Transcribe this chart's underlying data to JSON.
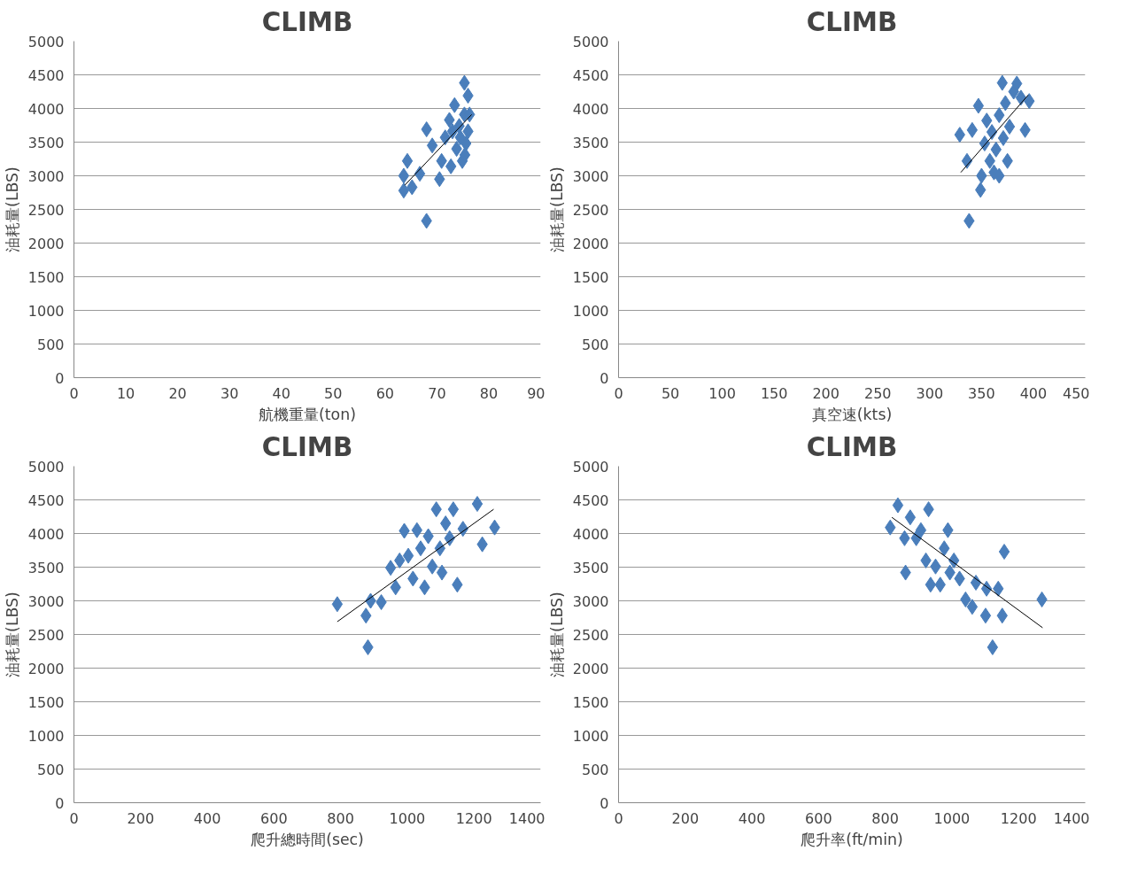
{
  "chart_data": [
    {
      "type": "scatter",
      "title": "CLIMB",
      "xlabel": "航機重量(ton)",
      "ylabel": "油耗量(LBS)",
      "xlim": [
        0,
        90
      ],
      "xticks": [
        0,
        10,
        20,
        30,
        40,
        50,
        60,
        70,
        80,
        90
      ],
      "ylim": [
        0,
        5000
      ],
      "yticks": [
        0,
        500,
        1000,
        1500,
        2000,
        2500,
        3000,
        3500,
        4000,
        4500,
        5000
      ],
      "grid": "y",
      "series": [
        {
          "marker": "diamond",
          "color": "#4a7ebb",
          "x": [
            63.6,
            63.6,
            64.3,
            65.2,
            66.7,
            68,
            68,
            69.1,
            70.5,
            71.6,
            72.4,
            72.7,
            73.4,
            73.8,
            74.3,
            74.9,
            75.3,
            75.3,
            75.6,
            76,
            76,
            76.3,
            75.4,
            74.5,
            73,
            70.9
          ],
          "values": [
            3000,
            2780,
            3220,
            2830,
            3030,
            3690,
            2330,
            3450,
            2950,
            3570,
            3830,
            3140,
            4050,
            3400,
            3740,
            3220,
            4380,
            3910,
            3480,
            4190,
            3660,
            3910,
            3310,
            3570,
            3660,
            3220
          ]
        },
        {
          "type": "line",
          "color": "#000000",
          "x": [
            63.8,
            76.7
          ],
          "values": [
            2860,
            3910
          ]
        }
      ]
    },
    {
      "type": "scatter",
      "title": "CLIMB",
      "xlabel": "真空速(kts)",
      "ylabel": "油耗量(LBS)",
      "xlim": [
        0,
        450
      ],
      "xticks": [
        0,
        50,
        100,
        150,
        200,
        250,
        300,
        350,
        400,
        450
      ],
      "ylim": [
        0,
        5000
      ],
      "yticks": [
        0,
        500,
        1000,
        1500,
        2000,
        2500,
        3000,
        3500,
        4000,
        4500,
        5000
      ],
      "grid": "y",
      "series": [
        {
          "marker": "diamond",
          "color": "#4a7ebb",
          "x": [
            329,
            336,
            338,
            341,
            347,
            349,
            350,
            353,
            355,
            358,
            360,
            362,
            364,
            367,
            367,
            370,
            371,
            373,
            375,
            377,
            381,
            384,
            388,
            392,
            396
          ],
          "values": [
            3610,
            3220,
            2330,
            3680,
            4040,
            2790,
            3000,
            3480,
            3820,
            3220,
            3650,
            3050,
            3390,
            3900,
            3000,
            4380,
            3560,
            4080,
            3220,
            3730,
            4250,
            4370,
            4160,
            3680,
            4110
          ]
        },
        {
          "type": "line",
          "color": "#000000",
          "x": [
            330,
            395
          ],
          "values": [
            3050,
            4200
          ]
        }
      ]
    },
    {
      "type": "scatter",
      "title": "CLIMB",
      "xlabel": "爬升總時間(sec)",
      "ylabel": "油耗量(LBS)",
      "xlim": [
        0,
        1400
      ],
      "xticks": [
        0,
        200,
        400,
        600,
        800,
        1000,
        1200,
        1400
      ],
      "ylim": [
        0,
        5000
      ],
      "yticks": [
        0,
        500,
        1000,
        1500,
        2000,
        2500,
        3000,
        3500,
        4000,
        4500,
        5000
      ],
      "grid": "y",
      "series": [
        {
          "marker": "diamond",
          "color": "#4a7ebb",
          "x": [
            790,
            876,
            882,
            890,
            922,
            950,
            965,
            977,
            991,
            1003,
            1017,
            1029,
            1040,
            1052,
            1063,
            1075,
            1087,
            1098,
            1104,
            1115,
            1127,
            1138,
            1150,
            1167,
            1210,
            1225,
            1262
          ],
          "values": [
            2950,
            2780,
            2310,
            3000,
            2980,
            3490,
            3200,
            3600,
            4040,
            3670,
            3330,
            4050,
            3780,
            3200,
            3960,
            3510,
            4360,
            3780,
            3420,
            4150,
            3930,
            4360,
            3240,
            4070,
            4440,
            3840,
            4090
          ]
        },
        {
          "type": "line",
          "color": "#000000",
          "x": [
            790,
            1259
          ],
          "values": [
            2690,
            4360
          ]
        }
      ]
    },
    {
      "type": "scatter",
      "title": "CLIMB",
      "xlabel": "爬升率(ft/min)",
      "ylabel": "油耗量(LBS)",
      "xlim": [
        0,
        1400
      ],
      "xticks": [
        0,
        200,
        400,
        600,
        800,
        1000,
        1200,
        1400
      ],
      "ylim": [
        0,
        5000
      ],
      "yticks": [
        0,
        500,
        1000,
        1500,
        2000,
        2500,
        3000,
        3500,
        4000,
        4500,
        5000
      ],
      "grid": "y",
      "series": [
        {
          "marker": "diamond",
          "color": "#4a7ebb",
          "x": [
            815,
            838,
            858,
            861,
            875,
            893,
            907,
            922,
            930,
            936,
            951,
            965,
            977,
            988,
            994,
            1006,
            1023,
            1041,
            1061,
            1072,
            1101,
            1104,
            1122,
            1139,
            1151,
            1157,
            1270
          ],
          "values": [
            4090,
            4420,
            3930,
            3420,
            4240,
            3930,
            4050,
            3600,
            4360,
            3240,
            3510,
            3240,
            3780,
            4050,
            3420,
            3600,
            3330,
            3020,
            2910,
            3270,
            2780,
            3180,
            2310,
            3180,
            2780,
            3730,
            3020
          ]
        },
        {
          "type": "line",
          "color": "#000000",
          "x": [
            820,
            1272
          ],
          "values": [
            4240,
            2600
          ]
        }
      ]
    }
  ]
}
